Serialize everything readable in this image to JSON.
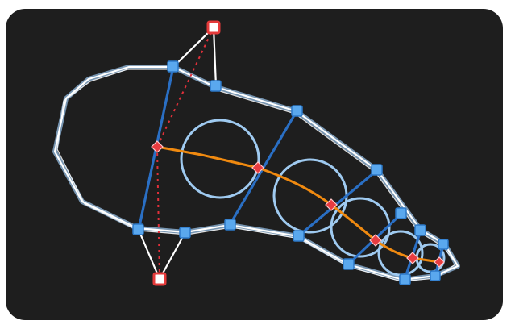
{
  "colors": {
    "page_background": "#ffffff",
    "canvas_background": "#1e1e1e",
    "outline_stroke": "#ffffff",
    "outline_glow": "#9cc8f0",
    "circle_stroke": "#9fcaf0",
    "rib_stroke": "#2a6fc4",
    "spine_stroke": "#f08a10",
    "guide_dashed": "#e0303a",
    "handle_fill": "#5aa8ee",
    "handle_stroke": "#2c79c8",
    "red_marker_fill": "#e83c40",
    "red_marker_stroke": "#ffc7c9",
    "corner_marker_fill": "#ffffff",
    "corner_marker_stroke": "#e53a3a"
  },
  "icons": {
    "rib_handle": "blue-square-handle-icon",
    "spine_point": "red-diamond-marker-icon",
    "control_corner": "red-square-control-icon"
  }
}
